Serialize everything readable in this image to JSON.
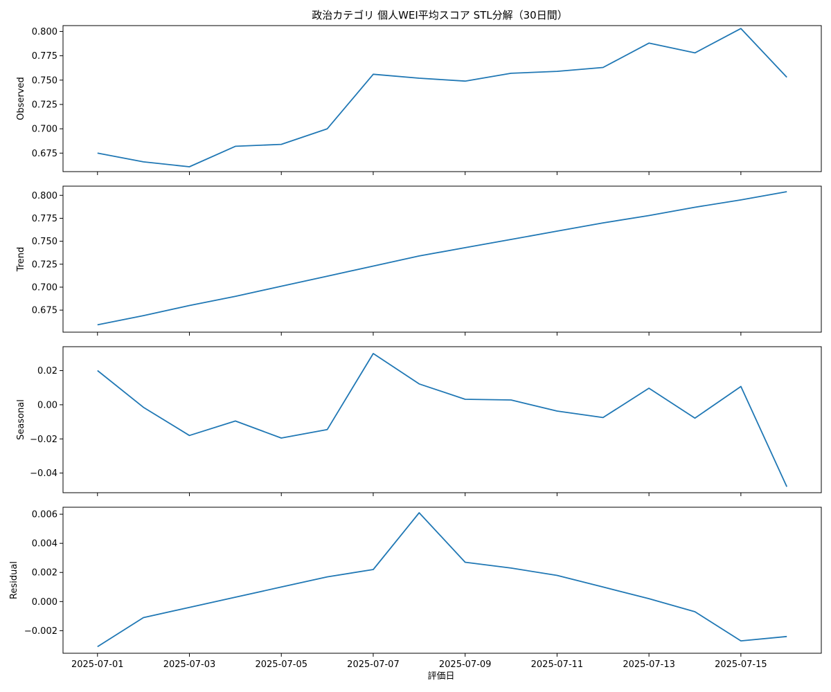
{
  "title": "政治カテゴリ 個人WEI平均スコア STL分解（30日間）",
  "xlabel": "評価日",
  "chart_data": {
    "type": "line",
    "x": [
      "2025-07-01",
      "2025-07-02",
      "2025-07-03",
      "2025-07-04",
      "2025-07-05",
      "2025-07-06",
      "2025-07-07",
      "2025-07-08",
      "2025-07-09",
      "2025-07-10",
      "2025-07-11",
      "2025-07-12",
      "2025-07-13",
      "2025-07-14",
      "2025-07-15",
      "2025-07-16"
    ],
    "x_ticks": [
      "2025-07-01",
      "2025-07-03",
      "2025-07-05",
      "2025-07-07",
      "2025-07-09",
      "2025-07-11",
      "2025-07-13",
      "2025-07-15"
    ],
    "xlabel": "評価日",
    "title": "政治カテゴリ 個人WEI平均スコア STL分解（30日間）",
    "panels": [
      {
        "ylabel": "Observed",
        "ylim": [
          0.656,
          0.806
        ],
        "y_ticks": [
          "0.675",
          "0.700",
          "0.725",
          "0.750",
          "0.775",
          "0.800"
        ],
        "values": [
          0.675,
          0.666,
          0.661,
          0.682,
          0.684,
          0.7,
          0.756,
          0.752,
          0.749,
          0.757,
          0.759,
          0.763,
          0.788,
          0.778,
          0.803,
          0.753
        ]
      },
      {
        "ylabel": "Trend",
        "ylim": [
          0.651,
          0.81
        ],
        "y_ticks": [
          "0.675",
          "0.700",
          "0.725",
          "0.750",
          "0.775",
          "0.800"
        ],
        "values": [
          0.659,
          0.669,
          0.68,
          0.69,
          0.701,
          0.712,
          0.723,
          0.734,
          0.743,
          0.752,
          0.761,
          0.77,
          0.778,
          0.787,
          0.795,
          0.804
        ]
      },
      {
        "ylabel": "Seasonal",
        "ylim": [
          -0.0515,
          0.034
        ],
        "y_ticks": [
          "-0.04",
          "-0.02",
          "0.00",
          "0.02"
        ],
        "values": [
          0.02,
          -0.0015,
          -0.018,
          -0.0095,
          -0.0195,
          -0.0145,
          0.03,
          0.0122,
          0.0032,
          0.0028,
          -0.0037,
          -0.0075,
          0.0097,
          -0.0078,
          0.0107,
          -0.048
        ]
      },
      {
        "ylabel": "Residual",
        "ylim": [
          -0.00355,
          0.00648
        ],
        "y_ticks": [
          "-0.002",
          "0.000",
          "0.002",
          "0.004",
          "0.006"
        ],
        "values": [
          -0.0031,
          -0.0011,
          -0.0004,
          0.0003,
          0.001,
          0.0017,
          0.0022,
          0.0061,
          0.0027,
          0.0023,
          0.0018,
          0.001,
          0.0002,
          -0.0007,
          -0.0027,
          -0.0024
        ]
      }
    ]
  }
}
